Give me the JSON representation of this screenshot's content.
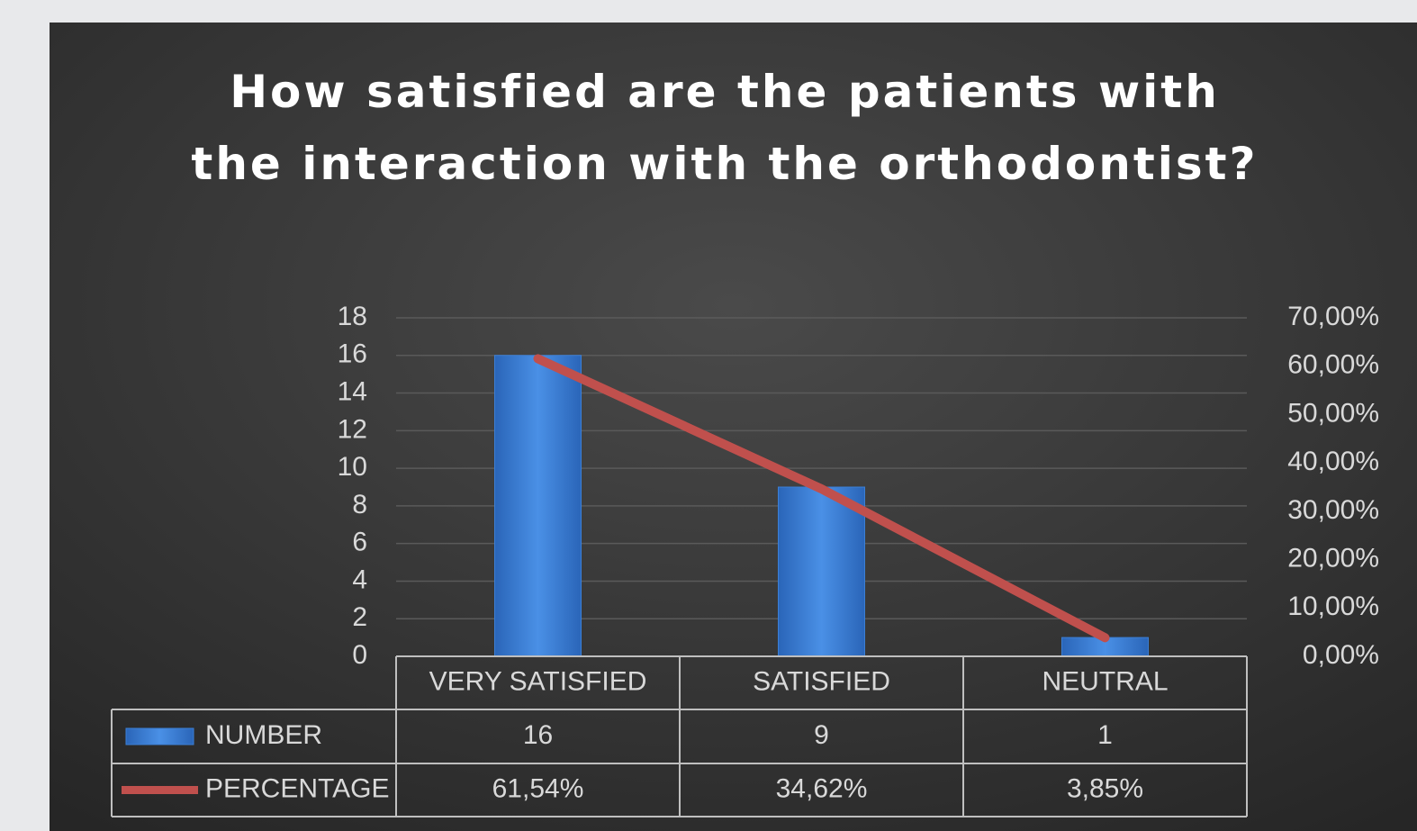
{
  "chart_data": {
    "type": "bar",
    "title": "How satisfied are the patients with the interaction with the orthodontist?",
    "categories": [
      "VERY SATISFIED",
      "SATISFIED",
      "NEUTRAL"
    ],
    "series": [
      {
        "name": "NUMBER",
        "type": "bar",
        "color": "#3b7fd6",
        "values": [
          16,
          9,
          1
        ]
      },
      {
        "name": "PERCENTAGE",
        "type": "line",
        "axis": "y2",
        "color": "#c0504d",
        "values": [
          61.54,
          34.62,
          3.85
        ],
        "value_labels": [
          "61,54%",
          "34,62%",
          "3,85%"
        ]
      }
    ],
    "ylim": [
      0,
      18
    ],
    "yticks": [
      0,
      2,
      4,
      6,
      8,
      10,
      12,
      14,
      16,
      18
    ],
    "y2lim": [
      0,
      70
    ],
    "y2ticks": [
      {
        "value": 0,
        "label": "0,00%"
      },
      {
        "value": 10,
        "label": "10,00%"
      },
      {
        "value": 20,
        "label": "20,00%"
      },
      {
        "value": 30,
        "label": "30,00%"
      },
      {
        "value": 40,
        "label": "40,00%"
      },
      {
        "value": 50,
        "label": "50,00%"
      },
      {
        "value": 60,
        "label": "60,00%"
      },
      {
        "value": 70,
        "label": "70,00%"
      }
    ],
    "grid": true,
    "legend": "table"
  }
}
